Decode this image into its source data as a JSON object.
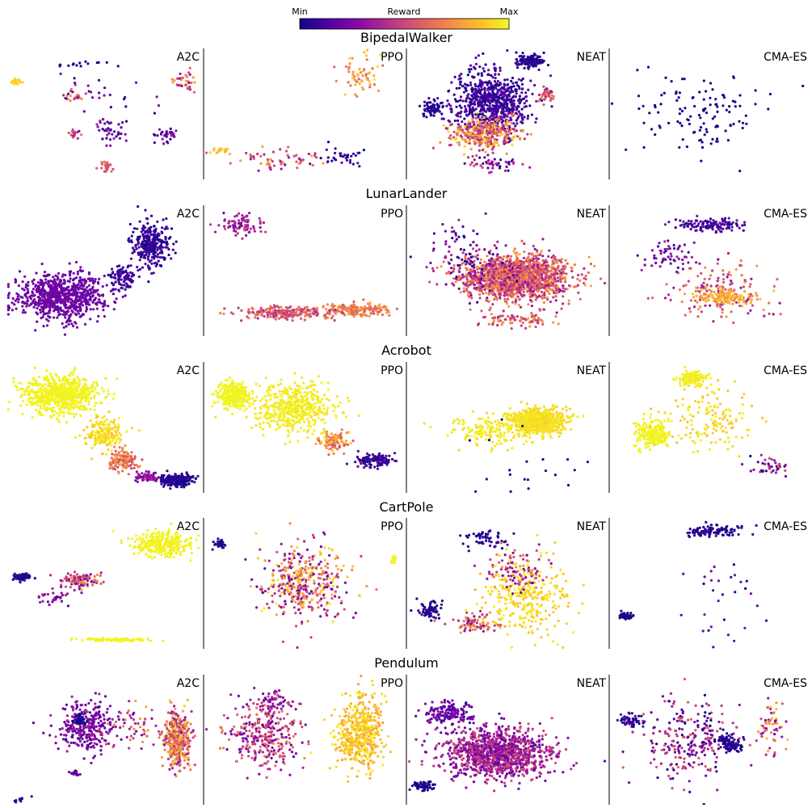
{
  "colorbar": {
    "min_label": "Min",
    "mid_label": "Reward",
    "max_label": "Max",
    "colormap": "plasma",
    "stops": [
      "#0d0887",
      "#5302a3",
      "#8b0aa5",
      "#b83289",
      "#db5c68",
      "#f48849",
      "#febd2a",
      "#f0f921"
    ]
  },
  "chart_data": [
    {
      "type": "scatter",
      "environment": "BipedalWalker",
      "panels": [
        {
          "algorithm": "A2C",
          "clusters": [
            {
              "x": 0.05,
              "y": 0.75,
              "sx": 0.02,
              "sy": 0.02,
              "n": 25,
              "r0": 0.9,
              "r1": 0.92
            },
            {
              "x": 0.42,
              "y": 0.88,
              "sx": 0.15,
              "sy": 0.02,
              "n": 15,
              "r0": 0.0,
              "r1": 0.05
            },
            {
              "x": 0.92,
              "y": 0.75,
              "sx": 0.05,
              "sy": 0.07,
              "n": 35,
              "r0": 0.2,
              "r1": 0.85
            },
            {
              "x": 0.34,
              "y": 0.65,
              "sx": 0.05,
              "sy": 0.05,
              "n": 20,
              "r0": 0.1,
              "r1": 0.8
            },
            {
              "x": 0.35,
              "y": 0.35,
              "sx": 0.03,
              "sy": 0.04,
              "n": 18,
              "r0": 0.2,
              "r1": 0.7
            },
            {
              "x": 0.55,
              "y": 0.38,
              "sx": 0.08,
              "sy": 0.1,
              "n": 40,
              "r0": 0.0,
              "r1": 0.4
            },
            {
              "x": 0.82,
              "y": 0.35,
              "sx": 0.06,
              "sy": 0.05,
              "n": 30,
              "r0": 0.0,
              "r1": 0.3
            },
            {
              "x": 0.51,
              "y": 0.1,
              "sx": 0.03,
              "sy": 0.03,
              "n": 22,
              "r0": 0.5,
              "r1": 0.7
            },
            {
              "x": 0.5,
              "y": 0.65,
              "sx": 0.18,
              "sy": 0.15,
              "n": 25,
              "r0": 0.0,
              "r1": 0.3
            }
          ]
        },
        {
          "algorithm": "PPO",
          "clusters": [
            {
              "x": 0.8,
              "y": 0.8,
              "sx": 0.08,
              "sy": 0.12,
              "n": 60,
              "r0": 0.55,
              "r1": 0.95
            },
            {
              "x": 0.38,
              "y": 0.15,
              "sx": 0.22,
              "sy": 0.06,
              "n": 60,
              "r0": 0.3,
              "r1": 0.8
            },
            {
              "x": 0.68,
              "y": 0.16,
              "sx": 0.1,
              "sy": 0.06,
              "n": 35,
              "r0": 0.0,
              "r1": 0.2
            },
            {
              "x": 0.08,
              "y": 0.22,
              "sx": 0.05,
              "sy": 0.02,
              "n": 20,
              "r0": 0.8,
              "r1": 0.9
            }
          ]
        },
        {
          "algorithm": "NEAT",
          "clusters": [
            {
              "x": 0.42,
              "y": 0.6,
              "sx": 0.16,
              "sy": 0.2,
              "n": 700,
              "r0": 0.0,
              "r1": 0.2
            },
            {
              "x": 0.38,
              "y": 0.35,
              "sx": 0.14,
              "sy": 0.1,
              "n": 350,
              "r0": 0.35,
              "r1": 0.95
            },
            {
              "x": 0.62,
              "y": 0.9,
              "sx": 0.06,
              "sy": 0.04,
              "n": 120,
              "r0": 0.0,
              "r1": 0.1
            },
            {
              "x": 0.12,
              "y": 0.55,
              "sx": 0.05,
              "sy": 0.05,
              "n": 60,
              "r0": 0.0,
              "r1": 0.1
            },
            {
              "x": 0.7,
              "y": 0.65,
              "sx": 0.04,
              "sy": 0.05,
              "n": 40,
              "r0": 0.3,
              "r1": 0.7
            },
            {
              "x": 0.45,
              "y": 0.12,
              "sx": 0.12,
              "sy": 0.05,
              "n": 50,
              "r0": 0.0,
              "r1": 0.6
            }
          ]
        },
        {
          "algorithm": "CMA-ES",
          "clusters": [
            {
              "x": 0.45,
              "y": 0.5,
              "sx": 0.3,
              "sy": 0.28,
              "n": 120,
              "r0": 0.0,
              "r1": 0.04
            }
          ]
        }
      ]
    },
    {
      "type": "scatter",
      "environment": "LunarLander",
      "panels": [
        {
          "algorithm": "A2C",
          "clusters": [
            {
              "x": 0.28,
              "y": 0.3,
              "sx": 0.18,
              "sy": 0.14,
              "n": 800,
              "r0": 0.18,
              "r1": 0.24
            },
            {
              "x": 0.75,
              "y": 0.7,
              "sx": 0.08,
              "sy": 0.15,
              "n": 300,
              "r0": 0.0,
              "r1": 0.15
            },
            {
              "x": 0.6,
              "y": 0.45,
              "sx": 0.06,
              "sy": 0.08,
              "n": 100,
              "r0": 0.05,
              "r1": 0.15
            }
          ]
        },
        {
          "algorithm": "PPO",
          "clusters": [
            {
              "x": 0.18,
              "y": 0.85,
              "sx": 0.08,
              "sy": 0.06,
              "n": 80,
              "r0": 0.2,
              "r1": 0.5
            },
            {
              "x": 0.75,
              "y": 0.2,
              "sx": 0.14,
              "sy": 0.04,
              "n": 200,
              "r0": 0.55,
              "r1": 0.8
            },
            {
              "x": 0.4,
              "y": 0.18,
              "sx": 0.18,
              "sy": 0.04,
              "n": 220,
              "r0": 0.4,
              "r1": 0.7
            }
          ]
        },
        {
          "algorithm": "NEAT",
          "clusters": [
            {
              "x": 0.55,
              "y": 0.45,
              "sx": 0.22,
              "sy": 0.14,
              "n": 1600,
              "r0": 0.3,
              "r1": 0.8
            },
            {
              "x": 0.3,
              "y": 0.6,
              "sx": 0.18,
              "sy": 0.22,
              "n": 100,
              "r0": 0.0,
              "r1": 0.4
            },
            {
              "x": 0.55,
              "y": 0.12,
              "sx": 0.14,
              "sy": 0.05,
              "n": 80,
              "r0": 0.4,
              "r1": 0.8
            }
          ]
        },
        {
          "algorithm": "CMA-ES",
          "clusters": [
            {
              "x": 0.5,
              "y": 0.85,
              "sx": 0.16,
              "sy": 0.04,
              "n": 120,
              "r0": 0.0,
              "r1": 0.25
            },
            {
              "x": 0.55,
              "y": 0.35,
              "sx": 0.22,
              "sy": 0.18,
              "n": 150,
              "r0": 0.3,
              "r1": 0.8
            },
            {
              "x": 0.6,
              "y": 0.3,
              "sx": 0.12,
              "sy": 0.04,
              "n": 150,
              "r0": 0.7,
              "r1": 0.9
            },
            {
              "x": 0.3,
              "y": 0.6,
              "sx": 0.12,
              "sy": 0.1,
              "n": 60,
              "r0": 0.1,
              "r1": 0.4
            }
          ]
        }
      ]
    },
    {
      "type": "scatter",
      "environment": "Acrobot",
      "panels": [
        {
          "algorithm": "A2C",
          "clusters": [
            {
              "x": 0.28,
              "y": 0.75,
              "sx": 0.15,
              "sy": 0.12,
              "n": 700,
              "r0": 0.97,
              "r1": 1.0
            },
            {
              "x": 0.5,
              "y": 0.45,
              "sx": 0.08,
              "sy": 0.1,
              "n": 200,
              "r0": 0.85,
              "r1": 1.0
            },
            {
              "x": 0.6,
              "y": 0.25,
              "sx": 0.06,
              "sy": 0.06,
              "n": 150,
              "r0": 0.5,
              "r1": 0.85
            },
            {
              "x": 0.88,
              "y": 0.1,
              "sx": 0.07,
              "sy": 0.04,
              "n": 200,
              "r0": 0.0,
              "r1": 0.1
            },
            {
              "x": 0.72,
              "y": 0.12,
              "sx": 0.06,
              "sy": 0.03,
              "n": 60,
              "r0": 0.2,
              "r1": 0.4
            }
          ]
        },
        {
          "algorithm": "PPO",
          "clusters": [
            {
              "x": 0.14,
              "y": 0.75,
              "sx": 0.06,
              "sy": 0.08,
              "n": 300,
              "r0": 0.98,
              "r1": 1.0
            },
            {
              "x": 0.45,
              "y": 0.65,
              "sx": 0.18,
              "sy": 0.15,
              "n": 500,
              "r0": 0.94,
              "r1": 1.0
            },
            {
              "x": 0.65,
              "y": 0.4,
              "sx": 0.06,
              "sy": 0.06,
              "n": 120,
              "r0": 0.5,
              "r1": 0.9
            },
            {
              "x": 0.85,
              "y": 0.25,
              "sx": 0.08,
              "sy": 0.04,
              "n": 120,
              "r0": 0.0,
              "r1": 0.2
            }
          ]
        },
        {
          "algorithm": "NEAT",
          "clusters": [
            {
              "x": 0.65,
              "y": 0.55,
              "sx": 0.12,
              "sy": 0.08,
              "n": 700,
              "r0": 0.9,
              "r1": 0.98
            },
            {
              "x": 0.4,
              "y": 0.48,
              "sx": 0.18,
              "sy": 0.1,
              "n": 150,
              "r0": 0.92,
              "r1": 1.0
            },
            {
              "x": 0.5,
              "y": 0.2,
              "sx": 0.25,
              "sy": 0.25,
              "n": 20,
              "r0": 0.0,
              "r1": 0.05
            }
          ]
        },
        {
          "algorithm": "CMA-ES",
          "clusters": [
            {
              "x": 0.42,
              "y": 0.88,
              "sx": 0.06,
              "sy": 0.05,
              "n": 150,
              "r0": 0.95,
              "r1": 1.0
            },
            {
              "x": 0.22,
              "y": 0.45,
              "sx": 0.07,
              "sy": 0.08,
              "n": 200,
              "r0": 0.97,
              "r1": 1.0
            },
            {
              "x": 0.5,
              "y": 0.55,
              "sx": 0.2,
              "sy": 0.2,
              "n": 150,
              "r0": 0.85,
              "r1": 1.0
            },
            {
              "x": 0.8,
              "y": 0.2,
              "sx": 0.1,
              "sy": 0.06,
              "n": 40,
              "r0": 0.0,
              "r1": 0.6
            }
          ]
        }
      ]
    },
    {
      "type": "scatter",
      "environment": "CartPole",
      "panels": [
        {
          "algorithm": "A2C",
          "clusters": [
            {
              "x": 0.8,
              "y": 0.8,
              "sx": 0.12,
              "sy": 0.08,
              "n": 300,
              "r0": 0.97,
              "r1": 1.0
            },
            {
              "x": 0.08,
              "y": 0.55,
              "sx": 0.04,
              "sy": 0.02,
              "n": 80,
              "r0": 0.0,
              "r1": 0.1
            },
            {
              "x": 0.38,
              "y": 0.52,
              "sx": 0.08,
              "sy": 0.05,
              "n": 120,
              "r0": 0.2,
              "r1": 0.8
            },
            {
              "x": 0.55,
              "y": 0.07,
              "sx": 0.18,
              "sy": 0.01,
              "n": 80,
              "r0": 0.97,
              "r1": 1.0
            },
            {
              "x": 0.25,
              "y": 0.4,
              "sx": 0.1,
              "sy": 0.05,
              "n": 30,
              "r0": 0.1,
              "r1": 0.4
            }
          ]
        },
        {
          "algorithm": "PPO",
          "clusters": [
            {
              "x": 0.5,
              "y": 0.5,
              "sx": 0.18,
              "sy": 0.25,
              "n": 400,
              "r0": 0.15,
              "r1": 1.0
            },
            {
              "x": 0.08,
              "y": 0.8,
              "sx": 0.03,
              "sy": 0.03,
              "n": 30,
              "r0": 0.0,
              "r1": 0.1
            },
            {
              "x": 0.95,
              "y": 0.68,
              "sx": 0.01,
              "sy": 0.03,
              "n": 20,
              "r0": 0.97,
              "r1": 1.0
            }
          ]
        },
        {
          "algorithm": "NEAT",
          "clusters": [
            {
              "x": 0.6,
              "y": 0.4,
              "sx": 0.18,
              "sy": 0.25,
              "n": 300,
              "r0": 0.85,
              "r1": 1.0
            },
            {
              "x": 0.4,
              "y": 0.85,
              "sx": 0.1,
              "sy": 0.06,
              "n": 60,
              "r0": 0.0,
              "r1": 0.1
            },
            {
              "x": 0.12,
              "y": 0.3,
              "sx": 0.06,
              "sy": 0.06,
              "n": 60,
              "r0": 0.0,
              "r1": 0.1
            },
            {
              "x": 0.35,
              "y": 0.2,
              "sx": 0.1,
              "sy": 0.06,
              "n": 80,
              "r0": 0.2,
              "r1": 0.9
            },
            {
              "x": 0.55,
              "y": 0.6,
              "sx": 0.12,
              "sy": 0.12,
              "n": 100,
              "r0": 0.2,
              "r1": 0.8
            }
          ]
        },
        {
          "algorithm": "CMA-ES",
          "clusters": [
            {
              "x": 0.52,
              "y": 0.9,
              "sx": 0.12,
              "sy": 0.04,
              "n": 100,
              "r0": 0.0,
              "r1": 0.1
            },
            {
              "x": 0.08,
              "y": 0.25,
              "sx": 0.03,
              "sy": 0.02,
              "n": 60,
              "r0": 0.0,
              "r1": 0.05
            },
            {
              "x": 0.55,
              "y": 0.4,
              "sx": 0.2,
              "sy": 0.25,
              "n": 30,
              "r0": 0.0,
              "r1": 0.3
            }
          ]
        }
      ]
    },
    {
      "type": "scatter",
      "environment": "Pendulum",
      "panels": [
        {
          "algorithm": "A2C",
          "clusters": [
            {
              "x": 0.4,
              "y": 0.6,
              "sx": 0.12,
              "sy": 0.15,
              "n": 300,
              "r0": 0.1,
              "r1": 0.4
            },
            {
              "x": 0.88,
              "y": 0.5,
              "sx": 0.06,
              "sy": 0.18,
              "n": 400,
              "r0": 0.3,
              "r1": 0.95
            },
            {
              "x": 0.38,
              "y": 0.65,
              "sx": 0.03,
              "sy": 0.03,
              "n": 40,
              "r0": 0.0,
              "r1": 0.05
            },
            {
              "x": 0.35,
              "y": 0.25,
              "sx": 0.02,
              "sy": 0.02,
              "n": 20,
              "r0": 0.1,
              "r1": 0.25
            },
            {
              "x": 0.65,
              "y": 0.6,
              "sx": 0.12,
              "sy": 0.15,
              "n": 60,
              "r0": 0.2,
              "r1": 0.8
            },
            {
              "x": 0.08,
              "y": 0.05,
              "sx": 0.03,
              "sy": 0.02,
              "n": 10,
              "r0": 0.0,
              "r1": 0.1
            }
          ]
        },
        {
          "algorithm": "PPO",
          "clusters": [
            {
              "x": 0.78,
              "y": 0.55,
              "sx": 0.1,
              "sy": 0.22,
              "n": 500,
              "r0": 0.75,
              "r1": 1.0
            },
            {
              "x": 0.3,
              "y": 0.55,
              "sx": 0.16,
              "sy": 0.2,
              "n": 300,
              "r0": 0.15,
              "r1": 0.7
            },
            {
              "x": 0.35,
              "y": 0.8,
              "sx": 0.08,
              "sy": 0.06,
              "n": 60,
              "r0": 0.2,
              "r1": 0.5
            }
          ]
        },
        {
          "algorithm": "NEAT",
          "clusters": [
            {
              "x": 0.45,
              "y": 0.4,
              "sx": 0.22,
              "sy": 0.16,
              "n": 1200,
              "r0": 0.15,
              "r1": 0.55
            },
            {
              "x": 0.08,
              "y": 0.15,
              "sx": 0.04,
              "sy": 0.03,
              "n": 60,
              "r0": 0.0,
              "r1": 0.05
            },
            {
              "x": 0.2,
              "y": 0.7,
              "sx": 0.1,
              "sy": 0.08,
              "n": 150,
              "r0": 0.1,
              "r1": 0.3
            }
          ]
        },
        {
          "algorithm": "CMA-ES",
          "clusters": [
            {
              "x": 0.4,
              "y": 0.5,
              "sx": 0.2,
              "sy": 0.25,
              "n": 250,
              "r0": 0.0,
              "r1": 0.6
            },
            {
              "x": 0.58,
              "y": 0.5,
              "sx": 0.04,
              "sy": 0.04,
              "n": 40,
              "r0": 0.0,
              "r1": 0.1
            },
            {
              "x": 0.82,
              "y": 0.6,
              "sx": 0.06,
              "sy": 0.15,
              "n": 60,
              "r0": 0.2,
              "r1": 0.95
            },
            {
              "x": 0.62,
              "y": 0.45,
              "sx": 0.04,
              "sy": 0.05,
              "n": 60,
              "r0": 0.0,
              "r1": 0.1
            },
            {
              "x": 0.1,
              "y": 0.65,
              "sx": 0.05,
              "sy": 0.05,
              "n": 60,
              "r0": 0.0,
              "r1": 0.15
            }
          ]
        }
      ]
    }
  ]
}
